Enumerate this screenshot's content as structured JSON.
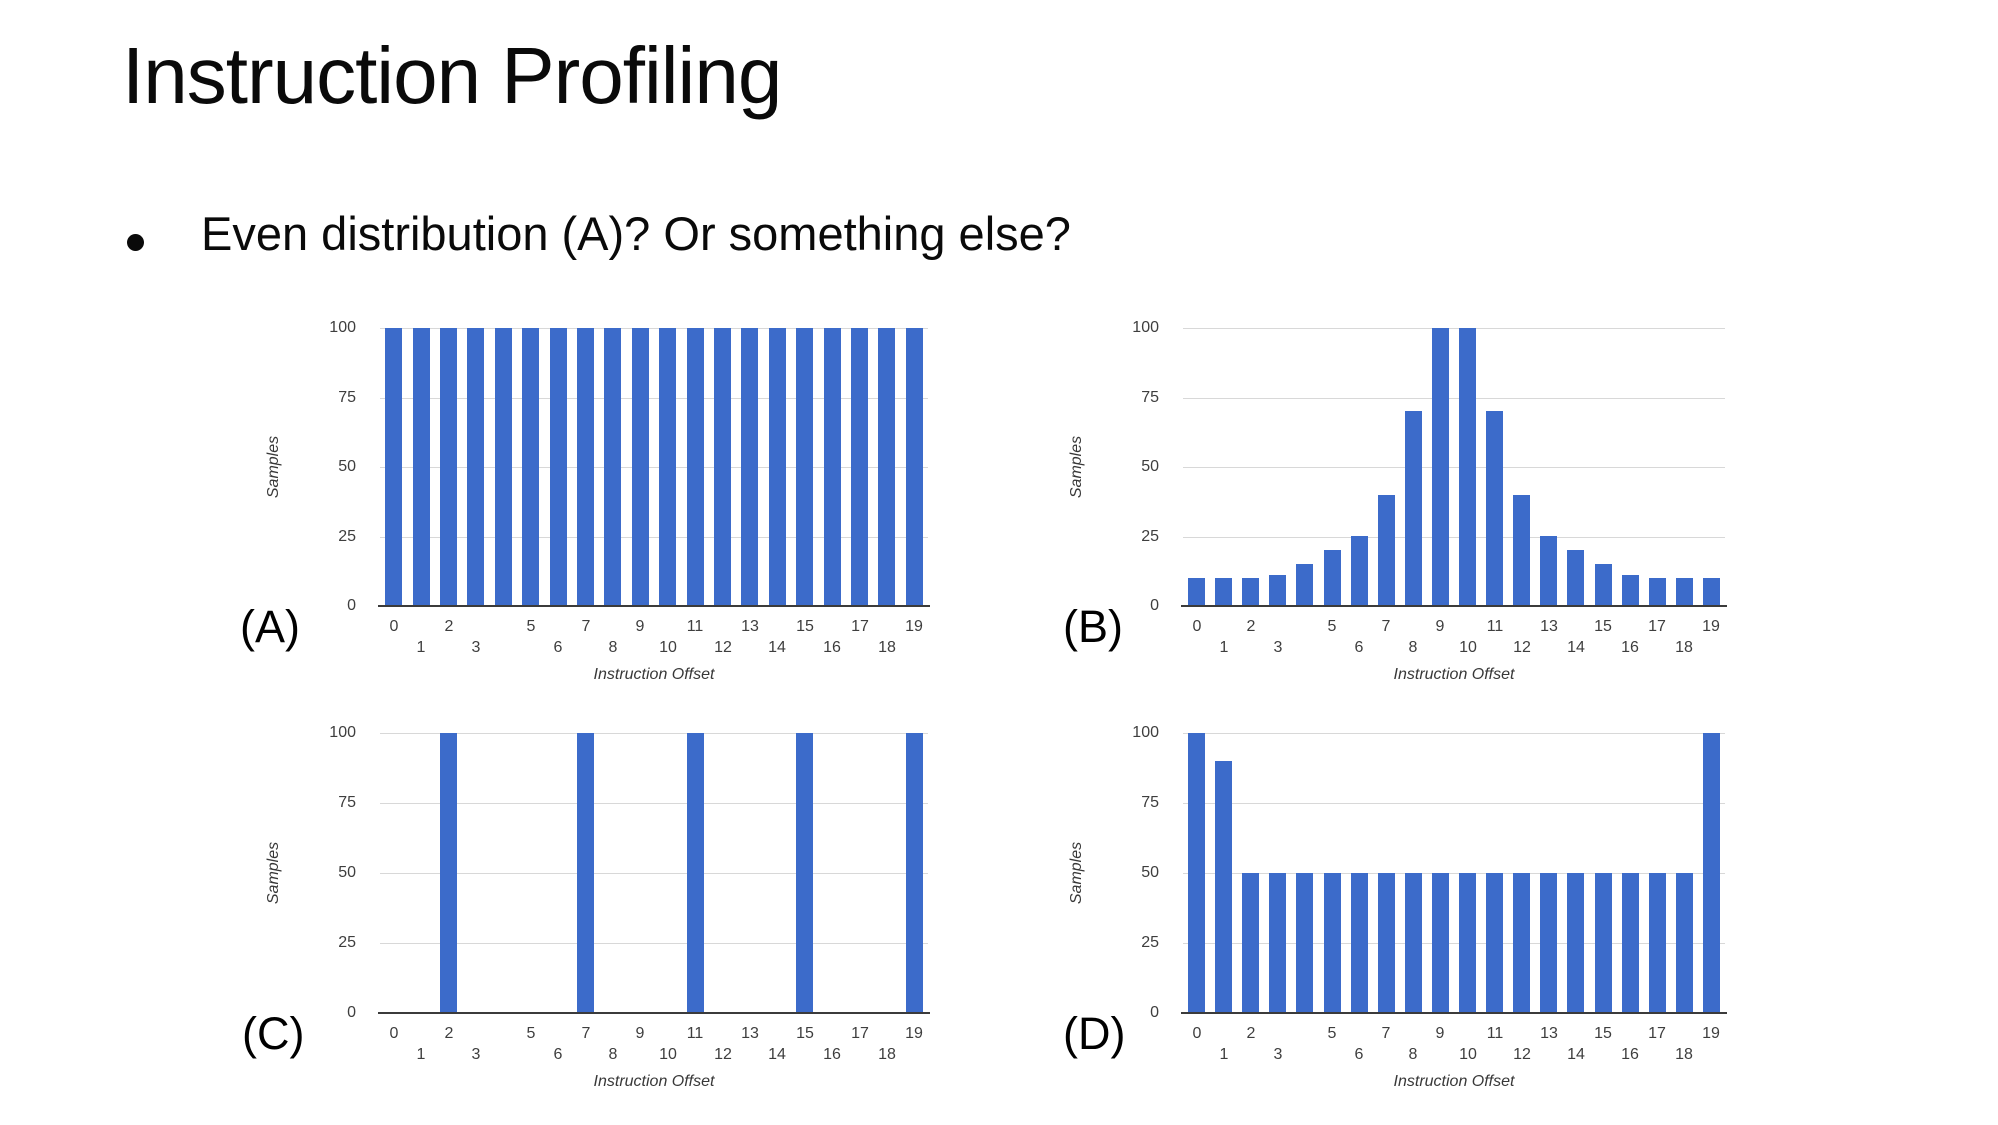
{
  "slide": {
    "title": "Instruction Profiling",
    "bullet": {
      "marker": "•",
      "text": "Even distribution (A)? Or something else?"
    }
  },
  "colors": {
    "bar": "#3C6BCA",
    "gridline": "#D8D8D8",
    "axis_line": "#3B3B3B",
    "tick_text": "#3E3E3E",
    "axis_title": "#383838",
    "panel_label": "#000000",
    "background": "#FFFFFF"
  },
  "chart_data": [
    {
      "id": "A",
      "panel_label": "(A)",
      "type": "bar",
      "xlabel": "Instruction Offset",
      "ylabel": "Samples",
      "ylim": [
        0,
        100
      ],
      "yticks": [
        0,
        25,
        50,
        75,
        100
      ],
      "grid": true,
      "legend": "none",
      "categories": [
        0,
        1,
        2,
        3,
        4,
        5,
        6,
        7,
        8,
        9,
        10,
        11,
        12,
        13,
        14,
        15,
        16,
        17,
        18,
        19
      ],
      "values": [
        100,
        100,
        100,
        100,
        100,
        100,
        100,
        100,
        100,
        100,
        100,
        100,
        100,
        100,
        100,
        100,
        100,
        100,
        100,
        100
      ],
      "xticks_row1": [
        "0",
        "2",
        "5",
        "7",
        "9",
        "11",
        "13",
        "15",
        "17",
        "19"
      ],
      "xticks_row2": [
        "1",
        "3",
        "6",
        "8",
        "10",
        "12",
        "14",
        "16",
        "18"
      ]
    },
    {
      "id": "B",
      "panel_label": "(B)",
      "type": "bar",
      "xlabel": "Instruction Offset",
      "ylabel": "Samples",
      "ylim": [
        0,
        100
      ],
      "yticks": [
        0,
        25,
        50,
        75,
        100
      ],
      "grid": true,
      "legend": "none",
      "categories": [
        0,
        1,
        2,
        3,
        4,
        5,
        6,
        7,
        8,
        9,
        10,
        11,
        12,
        13,
        14,
        15,
        16,
        17,
        18,
        19
      ],
      "values": [
        10,
        10,
        10,
        11,
        15,
        20,
        25,
        40,
        70,
        100,
        100,
        70,
        40,
        25,
        20,
        15,
        11,
        10,
        10,
        10
      ],
      "xticks_row1": [
        "0",
        "2",
        "5",
        "7",
        "9",
        "11",
        "13",
        "15",
        "17",
        "19"
      ],
      "xticks_row2": [
        "1",
        "3",
        "6",
        "8",
        "10",
        "12",
        "14",
        "16",
        "18"
      ]
    },
    {
      "id": "C",
      "panel_label": "(C)",
      "type": "bar",
      "xlabel": "Instruction Offset",
      "ylabel": "Samples",
      "ylim": [
        0,
        100
      ],
      "yticks": [
        0,
        25,
        50,
        75,
        100
      ],
      "grid": true,
      "legend": "none",
      "categories": [
        0,
        1,
        2,
        3,
        4,
        5,
        6,
        7,
        8,
        9,
        10,
        11,
        12,
        13,
        14,
        15,
        16,
        17,
        18,
        19
      ],
      "values": [
        0,
        0,
        100,
        0,
        0,
        0,
        0,
        100,
        0,
        0,
        0,
        100,
        0,
        0,
        0,
        100,
        0,
        0,
        0,
        100
      ],
      "xticks_row1": [
        "0",
        "2",
        "5",
        "7",
        "9",
        "11",
        "13",
        "15",
        "17",
        "19"
      ],
      "xticks_row2": [
        "1",
        "3",
        "6",
        "8",
        "10",
        "12",
        "14",
        "16",
        "18"
      ]
    },
    {
      "id": "D",
      "panel_label": "(D)",
      "type": "bar",
      "xlabel": "Instruction Offset",
      "ylabel": "Samples",
      "ylim": [
        0,
        100
      ],
      "yticks": [
        0,
        25,
        50,
        75,
        100
      ],
      "grid": true,
      "legend": "none",
      "categories": [
        0,
        1,
        2,
        3,
        4,
        5,
        6,
        7,
        8,
        9,
        10,
        11,
        12,
        13,
        14,
        15,
        16,
        17,
        18,
        19
      ],
      "values": [
        100,
        90,
        50,
        50,
        50,
        50,
        50,
        50,
        50,
        50,
        50,
        50,
        50,
        50,
        50,
        50,
        50,
        50,
        50,
        100
      ],
      "xticks_row1": [
        "0",
        "2",
        "5",
        "7",
        "9",
        "11",
        "13",
        "15",
        "17",
        "19"
      ],
      "xticks_row2": [
        "1",
        "3",
        "6",
        "8",
        "10",
        "12",
        "14",
        "16",
        "18"
      ]
    }
  ]
}
